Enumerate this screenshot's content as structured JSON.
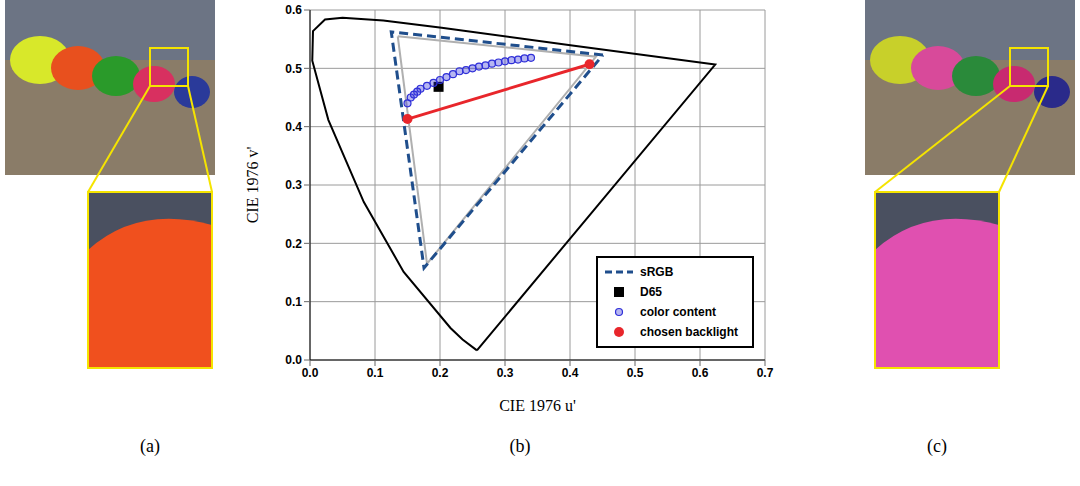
{
  "chart_data": {
    "type": "scatter",
    "x_label": "CIE 1976 u'",
    "y_label": "CIE 1976 v'",
    "xlim": [
      0,
      0.7
    ],
    "xticks": [
      {
        "value": 0,
        "label": "0.0"
      },
      0.1,
      0.2,
      0.3,
      0.4,
      0.5,
      0.6,
      0.7
    ],
    "ylim": [
      0,
      0.6
    ],
    "yticks": [
      {
        "value": 0,
        "label": "0.0"
      },
      0.1,
      0.2,
      0.3,
      0.4,
      0.5,
      0.6
    ],
    "grid": true,
    "legend": "lower right",
    "series": [
      {
        "type": "line",
        "color": "#000000",
        "line_style": "solid",
        "x": [
          0.2568,
          0.2347,
          0.2161,
          0.1441,
          0.0828,
          0.0282,
          0.0035,
          0.0046,
          0.0231,
          0.0501,
          0.1127,
          0.2026,
          0.4035,
          0.6234,
          0.2568
        ],
        "values": [
          0.0165,
          0.035,
          0.0549,
          0.151,
          0.2708,
          0.4117,
          0.513,
          0.5638,
          0.5837,
          0.5868,
          0.5821,
          0.5694,
          0.5393,
          0.5065,
          0.0165
        ]
      },
      {
        "type": "line",
        "color": "#b0b0b0",
        "line_style": "solid",
        "x": [
          0.135,
          0.44,
          0.18,
          0.135
        ],
        "values": [
          0.555,
          0.52,
          0.165,
          0.555
        ]
      },
      {
        "name": "sRGB",
        "type": "line",
        "color": "#1f4e8c",
        "line_style": "dashed",
        "x": [
          0.4507,
          0.125,
          0.1754,
          0.4507
        ],
        "values": [
          0.5229,
          0.5625,
          0.1579,
          0.5229
        ]
      },
      {
        "name": "D65",
        "type": "scatter",
        "color": "#000000",
        "marker": "square",
        "x": [
          0.1978
        ],
        "values": [
          0.4683
        ]
      },
      {
        "name": "color content",
        "type": "scatter",
        "color": "#2f2fd8",
        "marker": "circle",
        "x": [
          0.15,
          0.155,
          0.16,
          0.165,
          0.17,
          0.18,
          0.19,
          0.2,
          0.21,
          0.22,
          0.23,
          0.24,
          0.25,
          0.26,
          0.27,
          0.28,
          0.29,
          0.3,
          0.31,
          0.32,
          0.33,
          0.34
        ],
        "values": [
          0.44,
          0.45,
          0.455,
          0.46,
          0.465,
          0.47,
          0.475,
          0.48,
          0.485,
          0.49,
          0.495,
          0.497,
          0.5,
          0.503,
          0.505,
          0.508,
          0.51,
          0.512,
          0.514,
          0.515,
          0.517,
          0.518
        ]
      },
      {
        "name": "chosen backlight",
        "type": "line",
        "color": "#e8262b",
        "marker": "dot",
        "line_style": "solid",
        "x": [
          0.15,
          0.43
        ],
        "values": [
          0.413,
          0.507
        ]
      }
    ]
  },
  "panel_labels": [
    "(a)",
    "(b)",
    "(c)"
  ]
}
